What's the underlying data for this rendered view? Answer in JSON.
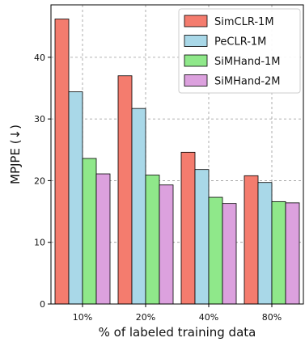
{
  "chart_data": {
    "type": "bar",
    "categories": [
      "10%",
      "20%",
      "40%",
      "80%"
    ],
    "series": [
      {
        "name": "SimCLR-1M",
        "color": "#f47c6e",
        "values": [
          46.2,
          37.0,
          24.6,
          20.8
        ]
      },
      {
        "name": "PeCLR-1M",
        "color": "#a9d8e8",
        "values": [
          34.4,
          31.7,
          21.8,
          19.7
        ]
      },
      {
        "name": "SiMHand-1M",
        "color": "#8fe88a",
        "values": [
          23.6,
          20.9,
          17.3,
          16.6
        ]
      },
      {
        "name": "SiMHand-2M",
        "color": "#dca1de",
        "values": [
          21.1,
          19.3,
          16.3,
          16.4
        ]
      }
    ],
    "xlabel": "% of labeled training data",
    "ylabel": "MPJPE (↓)",
    "ylim": [
      0,
      48.5
    ],
    "yticks": [
      0,
      10,
      20,
      30,
      40
    ],
    "grid": true,
    "legend": "top-right"
  }
}
